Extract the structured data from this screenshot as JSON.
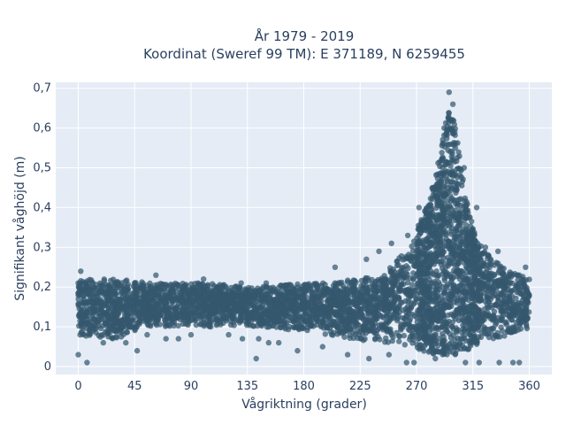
{
  "chart_data": {
    "type": "scatter",
    "title_line1": "År 1979 - 2019",
    "title_line2": "Koordinat (Sweref 99 TM): E 371189, N 6259455",
    "xlabel": "Vågriktning (grader)",
    "ylabel": "Signifikant våghöjd (m)",
    "xlim": [
      -18,
      378
    ],
    "ylim": [
      -0.02,
      0.715
    ],
    "x_ticks": [
      0,
      45,
      90,
      135,
      180,
      225,
      270,
      315,
      360
    ],
    "x_tick_labels": [
      "0",
      "45",
      "90",
      "135",
      "180",
      "225",
      "270",
      "315",
      "360"
    ],
    "y_ticks": [
      0,
      0.1,
      0.2,
      0.3,
      0.4,
      0.5,
      0.6,
      0.7
    ],
    "y_tick_labels": [
      "0",
      "0,1",
      "0,2",
      "0,3",
      "0,4",
      "0,5",
      "0,6",
      "0,7"
    ],
    "grid": true,
    "marker_color": "#34586e",
    "background_color": "#e5ecf6",
    "envelope": {
      "x": [
        0,
        10,
        30,
        60,
        100,
        140,
        180,
        200,
        220,
        240,
        255,
        265,
        275,
        285,
        290,
        295,
        300,
        305,
        310,
        315,
        320,
        330,
        345,
        360
      ],
      "upper": [
        0.22,
        0.22,
        0.22,
        0.21,
        0.21,
        0.2,
        0.21,
        0.21,
        0.22,
        0.23,
        0.27,
        0.31,
        0.38,
        0.48,
        0.56,
        0.65,
        0.62,
        0.52,
        0.42,
        0.35,
        0.31,
        0.27,
        0.24,
        0.22
      ],
      "lower": [
        0.08,
        0.07,
        0.07,
        0.1,
        0.1,
        0.1,
        0.09,
        0.08,
        0.07,
        0.06,
        0.06,
        0.05,
        0.04,
        0.03,
        0.03,
        0.03,
        0.03,
        0.03,
        0.04,
        0.05,
        0.06,
        0.07,
        0.08,
        0.09
      ]
    },
    "points": [
      [
        0,
        0.03
      ],
      [
        7,
        0.01
      ],
      [
        2,
        0.24
      ],
      [
        62,
        0.23
      ],
      [
        175,
        0.04
      ],
      [
        160,
        0.06
      ],
      [
        195,
        0.05
      ],
      [
        215,
        0.03
      ],
      [
        232,
        0.02
      ],
      [
        248,
        0.03
      ],
      [
        262,
        0.01
      ],
      [
        268,
        0.01
      ],
      [
        285,
        0.02
      ],
      [
        296,
        0.69
      ],
      [
        292,
        0.6
      ],
      [
        299,
        0.66
      ],
      [
        301,
        0.55
      ],
      [
        288,
        0.45
      ],
      [
        309,
        0.01
      ],
      [
        320,
        0.01
      ],
      [
        336,
        0.01
      ],
      [
        347,
        0.01
      ],
      [
        352,
        0.01
      ],
      [
        357,
        0.25
      ],
      [
        352,
        0.23
      ],
      [
        325,
        0.3
      ],
      [
        335,
        0.29
      ],
      [
        318,
        0.4
      ],
      [
        308,
        0.5
      ],
      [
        272,
        0.4
      ],
      [
        263,
        0.33
      ],
      [
        250,
        0.31
      ],
      [
        240,
        0.29
      ],
      [
        230,
        0.27
      ],
      [
        205,
        0.25
      ],
      [
        100,
        0.22
      ],
      [
        130,
        0.21
      ],
      [
        150,
        0.21
      ],
      [
        80,
        0.07
      ],
      [
        120,
        0.08
      ],
      [
        131,
        0.07
      ],
      [
        144,
        0.07
      ],
      [
        152,
        0.06
      ],
      [
        142,
        0.02
      ],
      [
        120,
        0.19
      ],
      [
        38,
        0.06
      ],
      [
        20,
        0.06
      ],
      [
        47,
        0.04
      ],
      [
        55,
        0.08
      ],
      [
        70,
        0.07
      ],
      [
        90,
        0.08
      ],
      [
        25,
        0.2
      ],
      [
        45,
        0.2
      ]
    ]
  }
}
